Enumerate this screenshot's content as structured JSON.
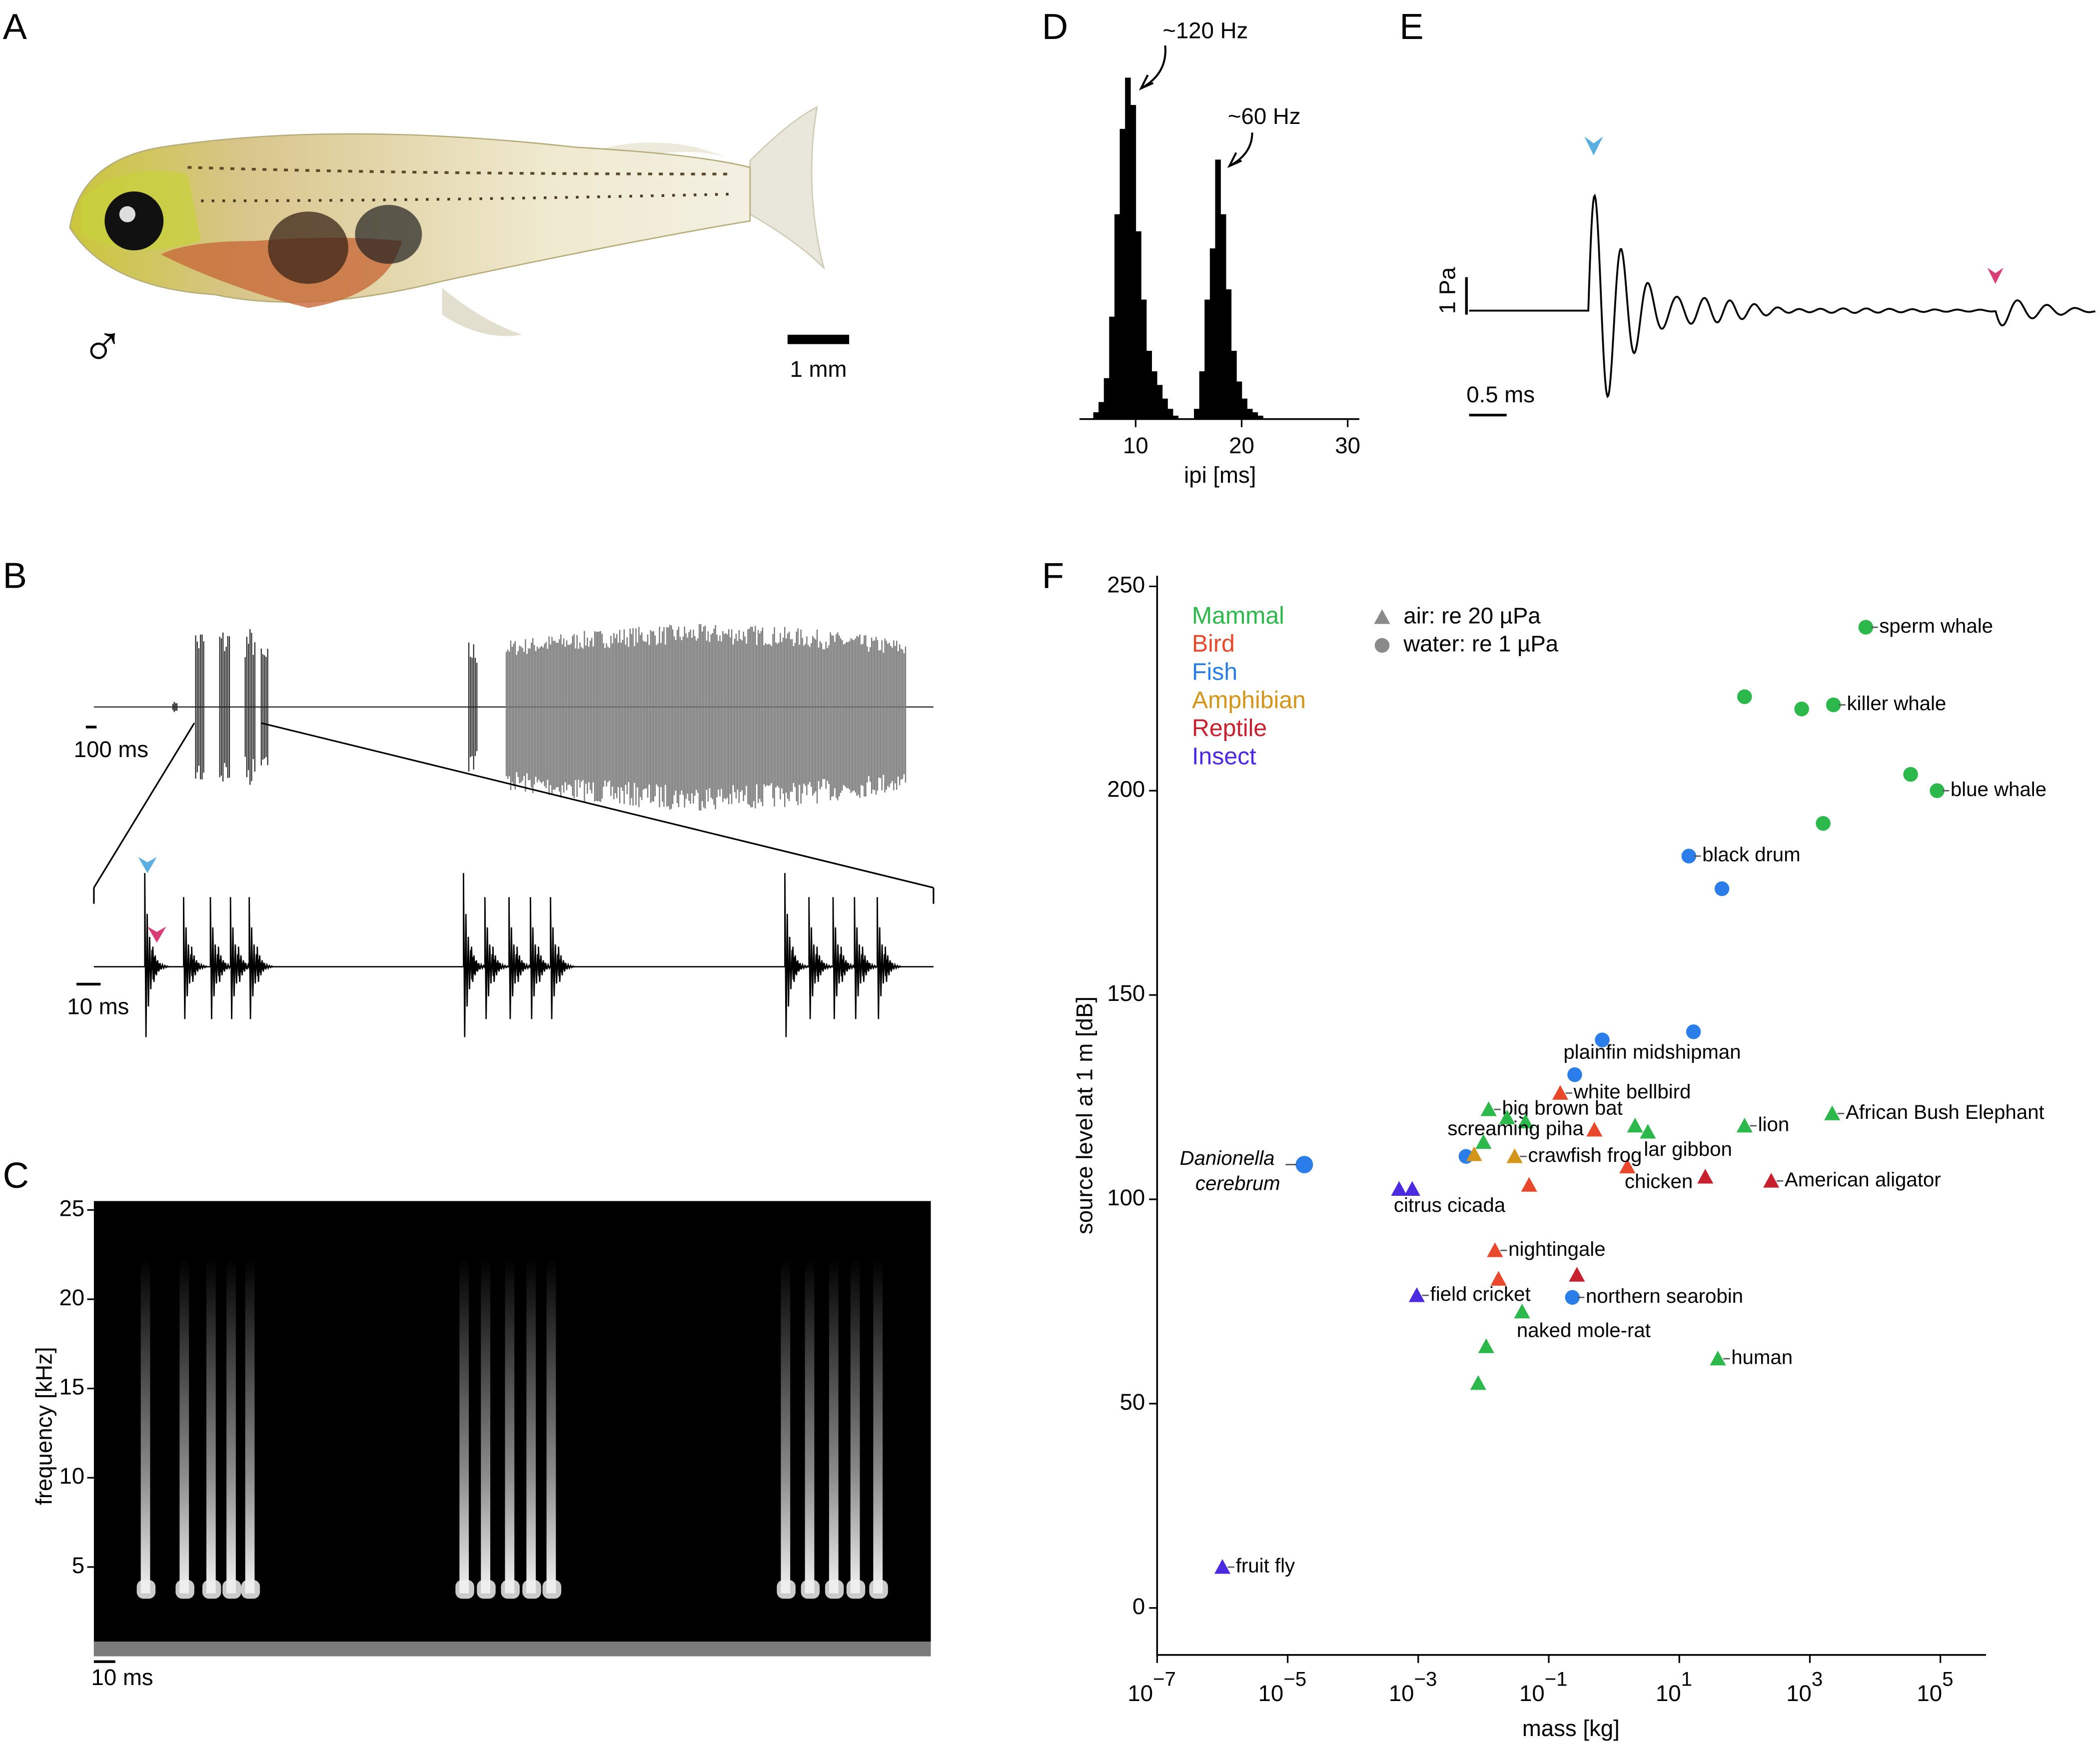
{
  "panels": {
    "A": {
      "label": "A",
      "symbol": "♂",
      "scale_bar": "1 mm"
    },
    "B": {
      "label": "B",
      "scale_bar_top": "100 ms",
      "scale_bar_zoom": "10 ms"
    },
    "E": {
      "label": "E",
      "scale_bar_y": "1 Pa",
      "scale_bar_x": "0.5 ms"
    }
  },
  "chart_data": [
    {
      "type": "spectrogram",
      "panel": "C",
      "ylabel": "frequency [kHz]",
      "ylim": [
        0,
        25.5
      ],
      "yticks": [
        5,
        10,
        15,
        20,
        25
      ],
      "scale_bar": "10 ms"
    },
    {
      "type": "histogram",
      "panel": "D",
      "xlabel": "ipi [ms]",
      "color": "#000000",
      "bins": [
        6,
        6.5,
        7,
        7.5,
        8,
        8.5,
        9,
        9.5,
        10,
        10.5,
        11,
        11.5,
        12,
        12.5,
        13,
        13.5,
        14,
        14.5,
        15,
        15.5,
        16,
        16.5,
        17,
        17.5,
        18,
        18.5,
        19,
        19.5,
        20,
        20.5,
        21,
        21.5,
        22,
        22.5
      ],
      "values": [
        2,
        5,
        12,
        30,
        60,
        85,
        100,
        92,
        55,
        35,
        20,
        14,
        10,
        6,
        3,
        1,
        0,
        0,
        0,
        3,
        14,
        35,
        50,
        76,
        60,
        38,
        20,
        11,
        6,
        3,
        2,
        1,
        0
      ],
      "xlim": [
        4.7,
        31.1
      ],
      "xticks": [
        10,
        20,
        30
      ],
      "ylim": [
        0,
        100
      ],
      "annotations": [
        "~120 Hz",
        "~60 Hz"
      ]
    },
    {
      "type": "scatter",
      "panel": "F",
      "xlabel": "mass [kg]",
      "ylabel": "source level at 1 m [dB]",
      "xscale": "log",
      "xlim": [
        1e-07,
        500000
      ],
      "ylim": [
        -11.5,
        252.6
      ],
      "xticks": [
        {
          "value": 1e-07,
          "label": "10−7"
        },
        {
          "value": 1e-05,
          "label": "10−5"
        },
        {
          "value": 0.001,
          "label": "10−3"
        },
        {
          "value": 0.1,
          "label": "10−1"
        },
        {
          "value": 10,
          "label": "101"
        },
        {
          "value": 1000,
          "label": "103"
        },
        {
          "value": 100000,
          "label": "105"
        }
      ],
      "yticks": [
        0,
        50,
        100,
        150,
        200,
        250
      ],
      "legend": "upper left",
      "marker_legend": [
        {
          "marker": "triangle",
          "label": "air: re 20 µPa",
          "color": "#8a8a8a"
        },
        {
          "marker": "circle",
          "label": "water: re 1 µPa",
          "color": "#8a8a8a"
        }
      ],
      "series": [
        {
          "name": "Mammal",
          "color": "#2cb84a",
          "x": [
            7200,
            2300,
            100,
            750,
            35000,
            89000,
            1600,
            2200,
            100,
            2.1,
            3.3,
            0.012,
            0.023,
            0.044,
            0.01,
            0.039,
            0.011,
            0.0083,
            39
          ],
          "values": [
            240,
            221,
            223,
            220,
            204,
            200,
            192,
            121,
            118,
            118,
            116.5,
            122,
            120,
            119,
            114,
            72.5,
            64,
            55,
            61
          ],
          "markers": [
            "circle",
            "circle",
            "circle",
            "circle",
            "circle",
            "circle",
            "circle",
            "triangle",
            "triangle",
            "triangle",
            "triangle",
            "triangle",
            "triangle",
            "triangle",
            "triangle",
            "triangle",
            "triangle",
            "triangle",
            "triangle"
          ],
          "labels": [
            "sperm whale",
            "killer whale",
            null,
            null,
            null,
            "blue whale",
            null,
            "African Bush Elephant",
            "lion",
            null,
            "lar gibbon",
            "big brown bat",
            null,
            null,
            null,
            "naked mole-rat",
            null,
            null,
            "human"
          ]
        },
        {
          "name": "Bird",
          "color": "#e8492c",
          "x": [
            0.15,
            0.5,
            1.6,
            0.05,
            0.015,
            0.017
          ],
          "values": [
            126,
            117,
            108,
            103.5,
            87.5,
            80.5
          ],
          "markers": [
            "triangle",
            "triangle",
            "triangle",
            "triangle",
            "triangle",
            "triangle"
          ],
          "labels": [
            "white bellbird",
            "screaming piha",
            "chicken",
            null,
            "nightingale",
            null
          ]
        },
        {
          "name": "Fish",
          "color": "#2b7de9",
          "x": [
            1.8e-05,
            14,
            45,
            16.5,
            0.66,
            0.25,
            0.0054,
            0.23
          ],
          "values": [
            108.5,
            184,
            176,
            141,
            139,
            130.5,
            110.5,
            76
          ],
          "markers": [
            "circle",
            "circle",
            "circle",
            "circle",
            "circle",
            "circle",
            "circle",
            "circle"
          ],
          "labels": [
            {
              "text": "Danionella cerebrum",
              "style": "italic"
            },
            "black drum",
            null,
            null,
            "plainfin midshipman",
            null,
            null,
            "northern searobin"
          ]
        },
        {
          "name": "Amphibian",
          "color": "#d4961a",
          "x": [
            0.03,
            0.0072
          ],
          "values": [
            110.5,
            111
          ],
          "markers": [
            "triangle",
            "triangle"
          ],
          "labels": [
            "crawfish frog",
            null
          ]
        },
        {
          "name": "Reptile",
          "color": "#c8202e",
          "x": [
            256,
            25,
            0.27
          ],
          "values": [
            104.5,
            105.5,
            81.5
          ],
          "markers": [
            "triangle",
            "triangle",
            "triangle"
          ],
          "labels": [
            "American aligator",
            null,
            null
          ]
        },
        {
          "name": "Insect",
          "color": "#4a2be0",
          "x": [
            1e-06,
            0.00051,
            0.00081,
            0.00095
          ],
          "values": [
            10,
            102.5,
            102.5,
            76.5
          ],
          "markers": [
            "triangle",
            "triangle",
            "triangle",
            "triangle"
          ],
          "labels": [
            "fruit fly",
            "citrus cicada",
            null,
            "field cricket"
          ]
        }
      ]
    }
  ]
}
